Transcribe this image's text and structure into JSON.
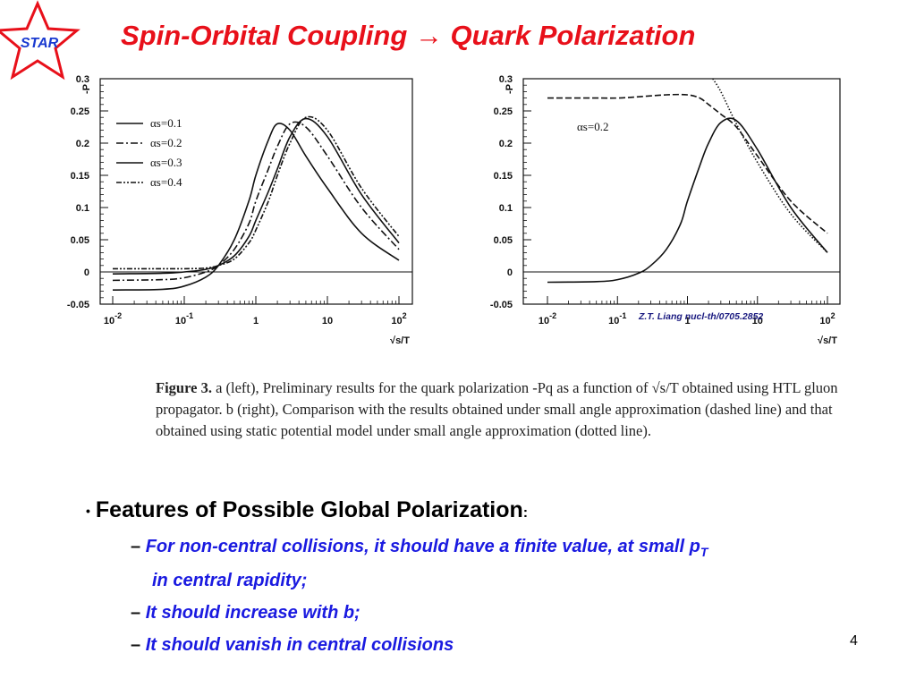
{
  "slide": {
    "title": "Spin-Orbital Coupling → Quark Polarization",
    "logo_text": "STAR",
    "page_number": "4",
    "citation": "Z.T. Liang nucl-th/0705.2852"
  },
  "figure": {
    "caption_label": "Figure 3.",
    "caption_text": "a (left), Preliminary results for the quark polarization -Pq as a function of √s/T obtained using HTL gluon propagator. b (right), Comparison with the results obtained under small angle approximation (dashed line) and that obtained using static potential model under small angle approximation (dotted line).",
    "y_axis_label": "-P",
    "x_axis_label": "√s/T"
  },
  "chart_data": [
    {
      "type": "line",
      "title": "",
      "xlabel": "√s/T",
      "ylabel": "-P",
      "xscale": "log",
      "xlim": [
        0.01,
        100
      ],
      "ylim": [
        -0.05,
        0.3
      ],
      "x_ticks": [
        "10^-2",
        "10^-1",
        "1",
        "10",
        "10^2"
      ],
      "y_ticks": [
        "-0.05",
        "0",
        "0.05",
        "0.1",
        "0.15",
        "0.2",
        "0.25",
        "0.3"
      ],
      "legend_position": "top-left",
      "grid": false,
      "series": [
        {
          "name": "αs=0.1",
          "style": "solid",
          "x": [
            0.01,
            0.05,
            0.1,
            0.2,
            0.3,
            0.5,
            0.8,
            1,
            1.5,
            2,
            3,
            5,
            10,
            30,
            100
          ],
          "y": [
            -0.028,
            -0.027,
            -0.022,
            -0.008,
            0.01,
            0.05,
            0.11,
            0.15,
            0.205,
            0.23,
            0.22,
            0.18,
            0.13,
            0.06,
            0.018
          ]
        },
        {
          "name": "αs=0.2",
          "style": "dash-dot",
          "x": [
            0.01,
            0.05,
            0.1,
            0.2,
            0.3,
            0.5,
            0.8,
            1,
            1.5,
            2,
            3,
            5,
            10,
            30,
            100
          ],
          "y": [
            -0.013,
            -0.012,
            -0.009,
            0.0,
            0.01,
            0.035,
            0.075,
            0.11,
            0.16,
            0.195,
            0.23,
            0.225,
            0.18,
            0.1,
            0.035
          ]
        },
        {
          "name": "αs=0.3",
          "style": "solid",
          "x": [
            0.01,
            0.05,
            0.1,
            0.2,
            0.3,
            0.5,
            0.8,
            1,
            1.5,
            2,
            3,
            5,
            10,
            30,
            100
          ],
          "y": [
            -0.003,
            -0.002,
            0.0,
            0.004,
            0.01,
            0.025,
            0.055,
            0.08,
            0.125,
            0.16,
            0.21,
            0.238,
            0.21,
            0.12,
            0.045
          ]
        },
        {
          "name": "αs=0.4",
          "style": "dash-dot-dot",
          "x": [
            0.01,
            0.05,
            0.1,
            0.2,
            0.3,
            0.5,
            0.8,
            1,
            1.5,
            2,
            3,
            5,
            10,
            30,
            100
          ],
          "y": [
            0.005,
            0.005,
            0.005,
            0.006,
            0.01,
            0.02,
            0.045,
            0.065,
            0.11,
            0.15,
            0.2,
            0.24,
            0.22,
            0.13,
            0.055
          ]
        }
      ]
    },
    {
      "type": "line",
      "title": "",
      "xlabel": "√s/T",
      "ylabel": "-P",
      "xscale": "log",
      "xlim": [
        0.01,
        100
      ],
      "ylim": [
        -0.05,
        0.3
      ],
      "x_ticks": [
        "10^-2",
        "10^-1",
        "1",
        "10",
        "10^2"
      ],
      "y_ticks": [
        "-0.05",
        "0",
        "0.05",
        "0.1",
        "0.15",
        "0.2",
        "0.25",
        "0.3"
      ],
      "annotation": "αs=0.2",
      "grid": false,
      "series": [
        {
          "name": "HTL",
          "style": "solid",
          "x": [
            0.01,
            0.05,
            0.1,
            0.2,
            0.3,
            0.5,
            0.8,
            1,
            1.5,
            2,
            3,
            5,
            10,
            30,
            100
          ],
          "y": [
            -0.016,
            -0.015,
            -0.012,
            -0.002,
            0.01,
            0.035,
            0.075,
            0.11,
            0.165,
            0.2,
            0.232,
            0.235,
            0.19,
            0.1,
            0.03
          ]
        },
        {
          "name": "small angle approximation",
          "style": "dashed",
          "x": [
            0.01,
            0.05,
            0.1,
            0.2,
            0.5,
            1,
            1.5,
            2,
            3,
            5,
            10,
            30,
            100
          ],
          "y": [
            0.27,
            0.27,
            0.27,
            0.272,
            0.275,
            0.275,
            0.27,
            0.26,
            0.245,
            0.225,
            0.18,
            0.11,
            0.06
          ]
        },
        {
          "name": "static potential model",
          "style": "dotted",
          "x": [
            2.3,
            3,
            5,
            10,
            30,
            100
          ],
          "y": [
            0.3,
            0.28,
            0.23,
            0.17,
            0.09,
            0.03
          ]
        }
      ]
    }
  ],
  "bullets": {
    "main": "Features of Possible Global Polarization",
    "main_colon": ":",
    "dash": "–",
    "items": [
      "For non-central collisions, it should have a finite value, at small pT",
      "in central rapidity;",
      "It should increase with b;",
      "It should vanish in central collisions"
    ]
  }
}
